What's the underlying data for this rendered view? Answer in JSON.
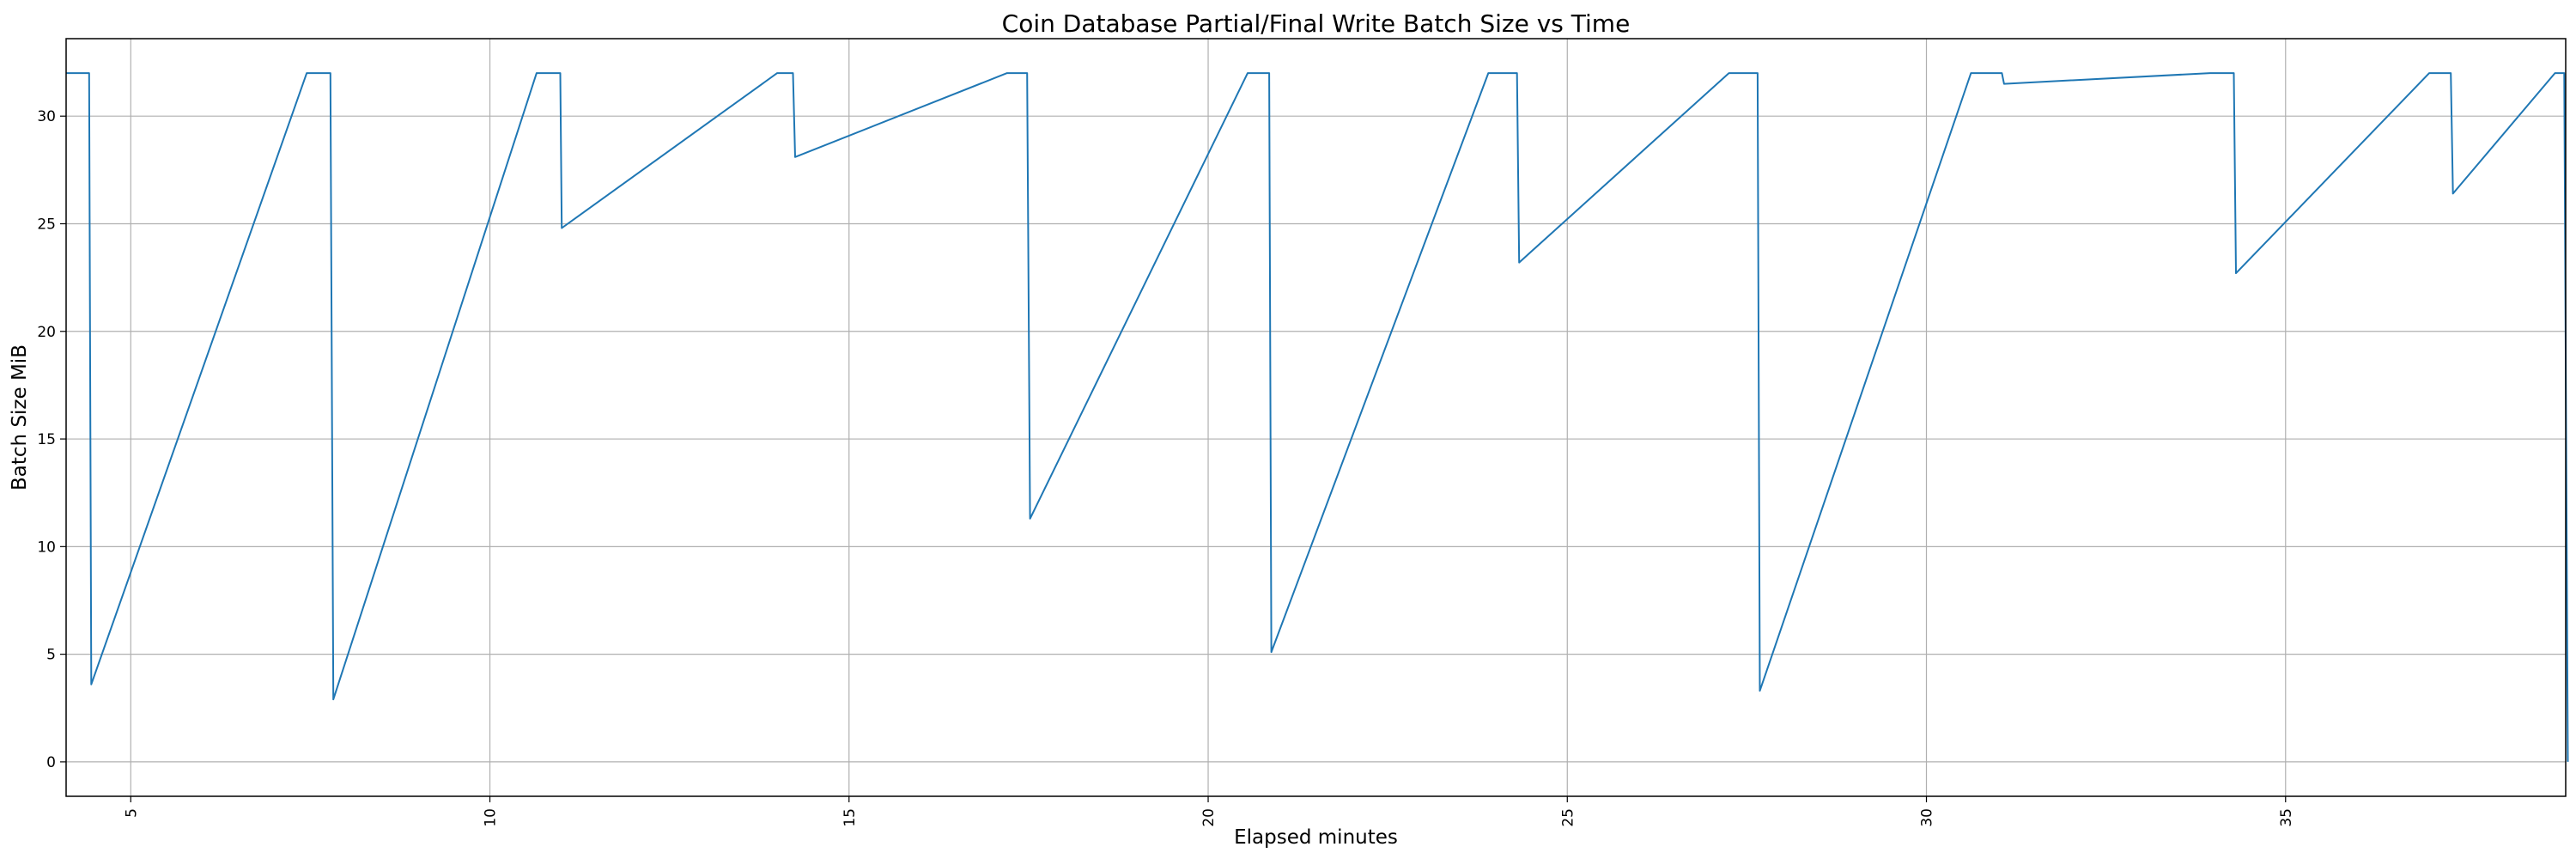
{
  "chart_data": {
    "type": "line",
    "title": "Coin Database Partial/Final Write Batch Size vs Time",
    "xlabel": "Elapsed minutes",
    "ylabel": "Batch Size MiB",
    "xlim": [
      4.1,
      38.9
    ],
    "ylim": [
      -1.6,
      33.6
    ],
    "xticks": [
      5,
      10,
      15,
      20,
      25,
      30,
      35
    ],
    "yticks": [
      0,
      5,
      10,
      15,
      20,
      25,
      30
    ],
    "grid": true,
    "xtick_rotation": 90,
    "color": "#1f77b4",
    "series": [
      {
        "x": [
          4.1,
          4.42,
          4.45,
          7.45,
          7.78,
          7.82,
          10.65,
          10.98,
          11.0,
          14.0,
          14.22,
          14.25,
          17.2,
          17.48,
          17.52,
          20.55,
          20.85,
          20.88,
          23.9,
          24.3,
          24.33,
          27.25,
          27.65,
          27.68,
          30.62,
          31.05,
          31.08,
          33.95,
          34.28,
          34.31,
          37.0,
          37.3,
          37.33,
          38.75,
          38.88,
          38.93
        ],
        "y": [
          32,
          32,
          3.6,
          32,
          32,
          2.9,
          32,
          32,
          24.8,
          32,
          32,
          28.1,
          32,
          32,
          11.3,
          32,
          32,
          5.1,
          32,
          32,
          23.2,
          32,
          32,
          3.3,
          32,
          32,
          31.5,
          32,
          32,
          22.7,
          32,
          32,
          26.4,
          32,
          32,
          0
        ]
      }
    ]
  }
}
